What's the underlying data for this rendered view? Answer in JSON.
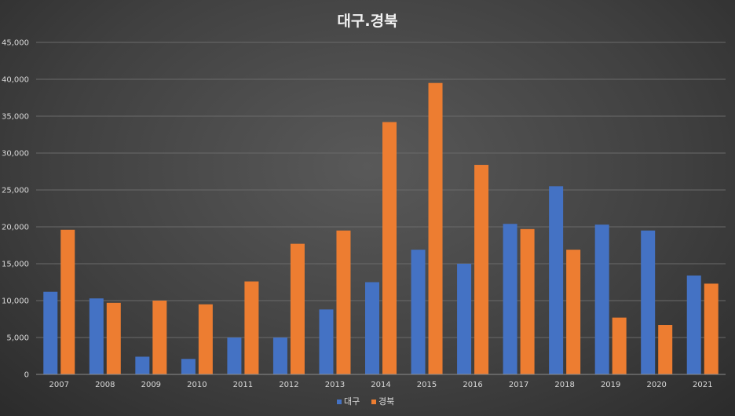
{
  "chart_data": {
    "type": "bar",
    "title": "대구.경북",
    "categories": [
      "2007",
      "2008",
      "2009",
      "2010",
      "2011",
      "2012",
      "2013",
      "2014",
      "2015",
      "2016",
      "2017",
      "2018",
      "2019",
      "2020",
      "2021"
    ],
    "series": [
      {
        "name": "대구",
        "color": "#4472c4",
        "values": [
          11200,
          10300,
          2400,
          2100,
          5000,
          5000,
          8800,
          12500,
          16900,
          15000,
          20400,
          25500,
          20300,
          19500,
          13400
        ]
      },
      {
        "name": "경북",
        "color": "#ed7d31",
        "values": [
          19600,
          9700,
          10000,
          9500,
          12600,
          17700,
          19500,
          34200,
          39500,
          28400,
          19700,
          16900,
          7700,
          6700,
          12300
        ]
      }
    ],
    "yticks": [
      "0",
      "5,000",
      "10,000",
      "15,000",
      "20,000",
      "25,000",
      "30,000",
      "35,000",
      "40,000",
      "45,000"
    ],
    "ylim": [
      0,
      45000
    ],
    "grid": true,
    "legend": "bottom"
  }
}
